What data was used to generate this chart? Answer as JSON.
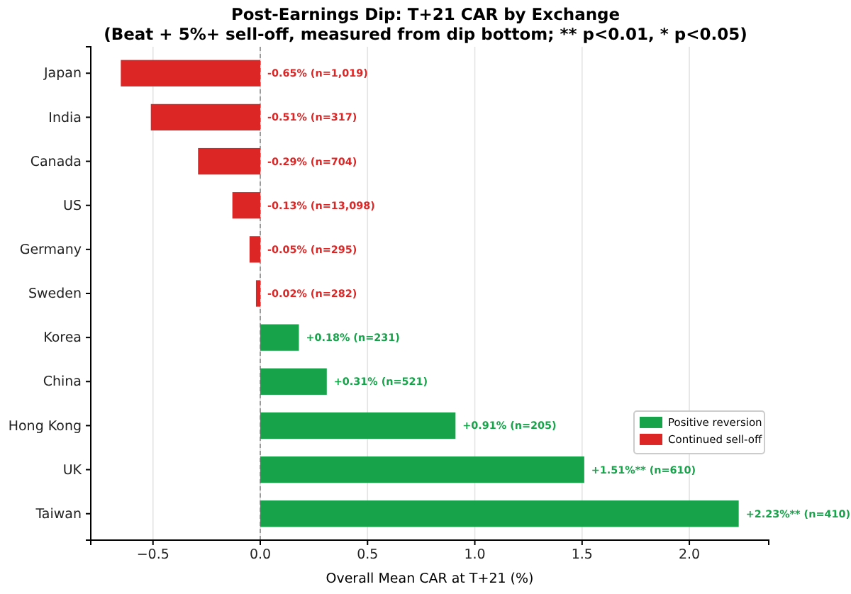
{
  "chart_data": {
    "type": "bar",
    "orientation": "horizontal",
    "title": "Post-Earnings Dip: T+21 CAR by Exchange",
    "subtitle": "(Beat + 5%+ sell-off, measured from dip bottom; ** p<0.01, * p<0.05)",
    "xlabel": "Overall Mean CAR at T+21 (%)",
    "categories": [
      "Japan",
      "India",
      "Canada",
      "US",
      "Germany",
      "Sweden",
      "Korea",
      "China",
      "Hong Kong",
      "UK",
      "Taiwan"
    ],
    "series": [
      {
        "name": "Positive reversion",
        "color": "#16a34a",
        "values": [
          null,
          null,
          null,
          null,
          null,
          null,
          0.18,
          0.31,
          0.91,
          1.51,
          2.23
        ],
        "value_labels": [
          null,
          null,
          null,
          null,
          null,
          null,
          "+0.18%  (n=231)",
          "+0.31%  (n=521)",
          "+0.91%  (n=205)",
          "+1.51%**  (n=610)",
          "+2.23%**  (n=410)"
        ]
      },
      {
        "name": "Continued sell-off",
        "color": "#dc2626",
        "values": [
          -0.65,
          -0.51,
          -0.29,
          -0.13,
          -0.05,
          -0.02,
          null,
          null,
          null,
          null,
          null
        ],
        "value_labels": [
          "-0.65%  (n=1,019)",
          "-0.51%  (n=317)",
          "-0.29%  (n=704)",
          "-0.13%  (n=13,098)",
          "-0.05%  (n=295)",
          "-0.02%  (n=282)",
          null,
          null,
          null,
          null,
          null
        ]
      }
    ],
    "xlim": [
      -0.79,
      2.37
    ],
    "xticks": [
      {
        "value": -0.5,
        "label": "−0.5"
      },
      {
        "value": 0,
        "label": "0.0"
      },
      {
        "value": 0.5,
        "label": "0.5"
      },
      {
        "value": 1,
        "label": "1.0"
      },
      {
        "value": 1.5,
        "label": "1.5"
      },
      {
        "value": 2,
        "label": "2.0"
      }
    ],
    "grid": "x",
    "legend": "lower right",
    "ref_lines": [
      {
        "axis": "x",
        "value": 0,
        "color": "#888888",
        "line_style": "dashed"
      }
    ]
  }
}
